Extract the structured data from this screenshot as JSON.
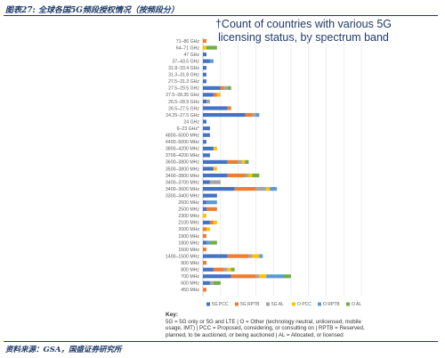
{
  "header": {
    "figure_title": "图表27: 全球各国5G频段授权情况（按频段分）"
  },
  "chart_title": "†Count of countries with various 5G licensing status, by spectrum band",
  "legend": [
    "5G PCC",
    "5G RPTB",
    "5G AL",
    "O PCC",
    "O RPTB",
    "O AL"
  ],
  "key": {
    "heading": "Key:",
    "text": "5G = 5G only or 5G and LTE | O = Other (technology neutral, unlicensed, mobile usage, IMT) | PCC = Proposed, considering, or consulting on | RPTB = Reserved, planned, to be auctioned, or being auctioned | AL = Allocated, or licensed"
  },
  "source": "资料来源：GSA，国盛证券研究所",
  "chart_data": {
    "type": "bar",
    "orientation": "horizontal",
    "stacked": true,
    "title": "†Count of countries with various 5G licensing status, by spectrum band",
    "xlim": [
      0,
      46
    ],
    "grid": true,
    "legend_position": "bottom",
    "categories": [
      "71–86 GHz",
      "64–71 GHz",
      "47 GHz",
      "37–43.5 GHz",
      "31.8–33.4 GHz",
      "31.3–31.8 GHz",
      "27.5–31.3 GHz",
      "27.5–29.5 GHz",
      "27.5–28.35 GHz",
      "26.5–28.9 GHz",
      "26.5–27.5 GHz",
      "24.25–27.5 GHz",
      "24 GHz",
      "6–23 GHz*",
      "4800–5000 MHz",
      "4400–5000 MHz",
      "3800–4200 MHz",
      "3700–4200 MHz",
      "3600–3800 MHz",
      "3500–3800 MHz",
      "3400–3800 MHz",
      "3400–3700 MHz",
      "3400–3600 MHz",
      "3300–3400 MHz",
      "2600 MHz",
      "2500 MHz",
      "2300 MHz",
      "2100 MHz",
      "2000 MHz",
      "1900 MHz",
      "1800 MHz",
      "1500 MHz",
      "1400–1500 MHz",
      "900 MHz",
      "800 MHz",
      "700 MHz",
      "600 MHz",
      "450 MHz"
    ],
    "series": [
      {
        "name": "5G PCC",
        "color": "#4472c4",
        "values": [
          0,
          0,
          1,
          2,
          1,
          1,
          1,
          5,
          3,
          1,
          7,
          12,
          1,
          2,
          2,
          1,
          3,
          2,
          7,
          3,
          7,
          2,
          9,
          4,
          1,
          1,
          0,
          2,
          0,
          0,
          1,
          0,
          7,
          0,
          3,
          8,
          2,
          0
        ]
      },
      {
        "name": "5G RPTB",
        "color": "#ed7d31",
        "values": [
          1,
          0,
          0,
          0,
          0,
          0,
          0,
          1,
          1,
          0,
          1,
          2,
          0,
          0,
          0,
          0,
          0,
          0,
          3,
          0,
          5,
          0,
          6,
          0,
          0,
          3,
          0,
          1,
          1,
          1,
          0,
          1,
          6,
          1,
          3,
          7,
          0,
          1
        ]
      },
      {
        "name": "5G AL",
        "color": "#a5a5a5",
        "values": [
          0,
          0,
          0,
          0,
          0,
          0,
          0,
          1,
          0,
          1,
          0,
          1,
          0,
          0,
          0,
          0,
          0,
          0,
          1,
          0,
          1,
          3,
          3,
          0,
          0,
          0,
          0,
          0,
          0,
          0,
          0,
          0,
          1,
          0,
          1,
          1,
          1,
          0
        ]
      },
      {
        "name": "O PCC",
        "color": "#ffc000",
        "values": [
          0,
          1,
          0,
          0,
          0,
          0,
          0,
          0,
          1,
          0,
          0,
          0,
          0,
          0,
          0,
          0,
          1,
          0,
          1,
          1,
          1,
          0,
          1,
          0,
          0,
          0,
          1,
          1,
          1,
          0,
          0,
          0,
          2,
          0,
          1,
          2,
          0,
          0
        ]
      },
      {
        "name": "O RPTB",
        "color": "#5b9bd5",
        "values": [
          0,
          0,
          0,
          1,
          0,
          0,
          0,
          0,
          0,
          0,
          0,
          1,
          0,
          0,
          0,
          0,
          0,
          0,
          0,
          0,
          0,
          0,
          2,
          0,
          3,
          0,
          0,
          0,
          0,
          0,
          1,
          0,
          1,
          0,
          0,
          5,
          0,
          0
        ]
      },
      {
        "name": "O AL",
        "color": "#70ad47",
        "values": [
          0,
          3,
          0,
          0,
          0,
          0,
          0,
          1,
          0,
          0,
          0,
          0,
          0,
          0,
          0,
          0,
          0,
          0,
          1,
          0,
          2,
          0,
          0,
          0,
          0,
          0,
          0,
          0,
          0,
          0,
          2,
          0,
          0,
          0,
          1,
          2,
          2,
          0
        ]
      }
    ]
  }
}
